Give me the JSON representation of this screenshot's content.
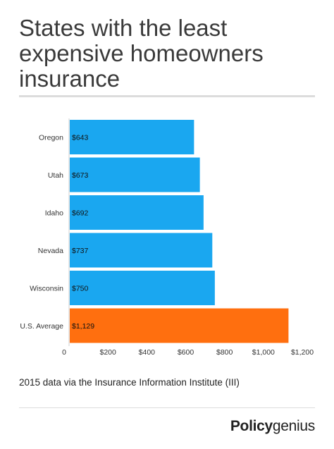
{
  "title": "States with the least expensive homeowners insurance",
  "source_note": "2015 data via the Insurance Information Institute (III)",
  "brand": {
    "part1": "Policy",
    "part2": "genius"
  },
  "colors": {
    "state_bar": "#1aa7f0",
    "average_bar": "#ff6f0f"
  },
  "chart_data": {
    "type": "bar",
    "orientation": "horizontal",
    "categories": [
      "Oregon",
      "Utah",
      "Idaho",
      "Nevada",
      "Wisconsin",
      "U.S. Average"
    ],
    "values": [
      643,
      673,
      692,
      737,
      750,
      1129
    ],
    "value_labels": [
      "$643",
      "$673",
      "$692",
      "$737",
      "$750",
      "$1,129"
    ],
    "highlight": [
      false,
      false,
      false,
      false,
      false,
      true
    ],
    "xlim": [
      0,
      1200
    ],
    "x_ticks": [
      0,
      200,
      400,
      600,
      800,
      1000,
      1200
    ],
    "x_tick_labels": [
      "0",
      "$200",
      "$400",
      "$600",
      "$800",
      "$1,000",
      "$1,200"
    ],
    "grid": false
  }
}
